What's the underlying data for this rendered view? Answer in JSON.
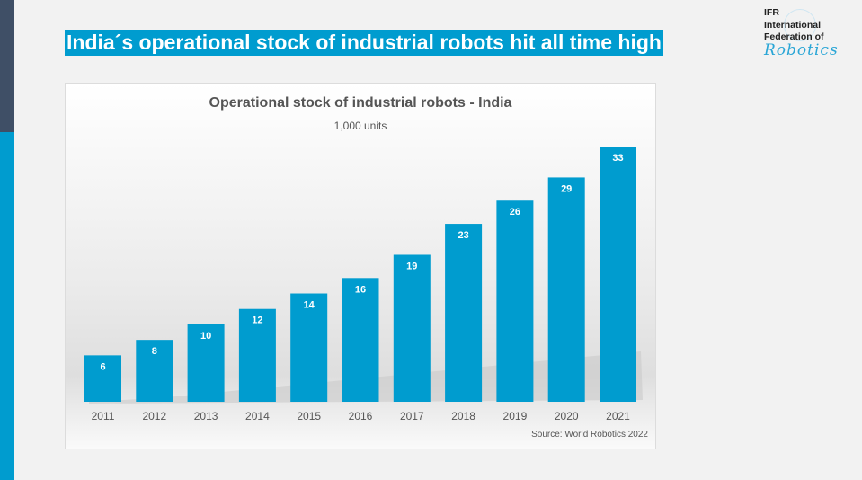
{
  "slide": {
    "headline": "India´s operational stock of industrial robots hit all time high",
    "logo": {
      "line1": "IFR",
      "line2": "International",
      "line3": "Federation of",
      "line4": "Robotics"
    },
    "colors": {
      "accent": "#009ccf",
      "sidebar_dark": "#3f4f66",
      "bar": "#009ccf"
    }
  },
  "chart_data": {
    "type": "bar",
    "title": "Operational stock of industrial robots - India",
    "subtitle": "1,000 units",
    "xlabel": "",
    "ylabel": "",
    "categories": [
      "2011",
      "2012",
      "2013",
      "2014",
      "2015",
      "2016",
      "2017",
      "2018",
      "2019",
      "2020",
      "2021"
    ],
    "values": [
      6,
      8,
      10,
      12,
      14,
      16,
      19,
      23,
      26,
      29,
      33
    ],
    "ylim": [
      0,
      33
    ],
    "grid": false,
    "legend": "none",
    "source": "Source: World Robotics 2022"
  }
}
